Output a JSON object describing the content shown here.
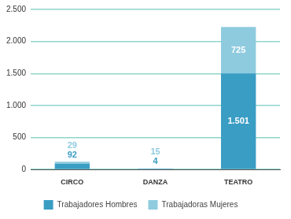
{
  "chart_data": {
    "type": "bar",
    "categories": [
      "CIRCO",
      "DANZA",
      "TEATRO"
    ],
    "series": [
      {
        "name": "Trabajadores Hombres",
        "color": "#3a9dc4",
        "values": [
          92,
          4,
          1501
        ],
        "value_labels": [
          "92",
          "4",
          "1.501"
        ]
      },
      {
        "name": "Trabajadoras Mujeres",
        "color": "#8fcbdf",
        "values": [
          29,
          15,
          725
        ]
      }
    ],
    "ylim": [
      0,
      2500
    ],
    "yticks": [
      0,
      500,
      {
        "value": 1000,
        "label": "1.000"
      },
      {
        "value": 1500,
        "label": "1.500"
      },
      {
        "value": 2000,
        "label": "2.000"
      },
      {
        "value": 2500,
        "label": "2.500"
      }
    ],
    "stacked": true,
    "grid": true,
    "legend": "bottom",
    "data_labels": true
  }
}
